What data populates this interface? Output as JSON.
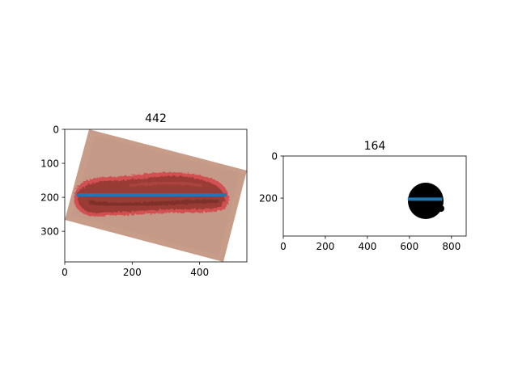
{
  "chart_data": [
    {
      "type": "image",
      "title": "442",
      "xlim": [
        0,
        540
      ],
      "ylim": [
        390,
        0
      ],
      "xticks": [
        0,
        200,
        400
      ],
      "yticks": [
        0,
        100,
        200,
        300
      ],
      "series": [
        {
          "x": [
            35,
            480
          ],
          "y": [
            193,
            193
          ]
        }
      ],
      "colors": {
        "line": "#1f77b4",
        "skin": "#c9a08d",
        "lesion": "#a23a35",
        "rim": "#d9484a"
      }
    },
    {
      "type": "image",
      "title": "164",
      "xlim": [
        0,
        870
      ],
      "ylim": [
        380,
        0
      ],
      "xticks": [
        0,
        200,
        400,
        600,
        800
      ],
      "yticks": [
        0,
        200
      ],
      "series": [
        {
          "x": [
            592,
            756
          ],
          "y": [
            205,
            205
          ]
        }
      ],
      "colors": {
        "line": "#1f77b4",
        "mask": "#000000"
      }
    }
  ]
}
